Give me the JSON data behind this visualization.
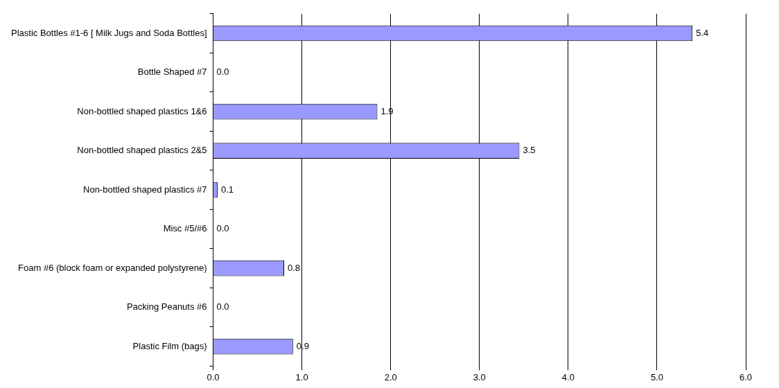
{
  "chart_data": {
    "type": "bar",
    "orientation": "horizontal",
    "categories": [
      "Plastic Bottles #1-6 [ Milk Jugs and Soda Bottles]",
      "Bottle Shaped #7",
      "Non-bottled shaped plastics 1&6",
      "Non-bottled shaped plastics 2&5",
      "Non-bottled shaped plastics #7",
      "Misc #5/#6",
      "Foam #6 (block foam or expanded polystyrene)",
      "Packing Peanuts #6",
      "Plastic Film (bags)"
    ],
    "values": [
      5.4,
      0,
      1.85,
      3.45,
      0.05,
      0,
      0.8,
      0,
      0.9
    ],
    "value_labels": [
      "5.4",
      "0.0",
      "1.9",
      "3.5",
      "0.1",
      "0.0",
      "0.8",
      "0.0",
      "0.9"
    ],
    "color": "#9999ff",
    "xlim": [
      0,
      6
    ],
    "xticks": [
      {
        "value": 0,
        "label": "0.0"
      },
      {
        "value": 1,
        "label": "1.0"
      },
      {
        "value": 2,
        "label": "2.0"
      },
      {
        "value": 3,
        "label": "3.0"
      },
      {
        "value": 4,
        "label": "4.0"
      },
      {
        "value": 5,
        "label": "5.0"
      },
      {
        "value": 6,
        "label": "6.0"
      }
    ],
    "grid": "x",
    "legend": false
  }
}
